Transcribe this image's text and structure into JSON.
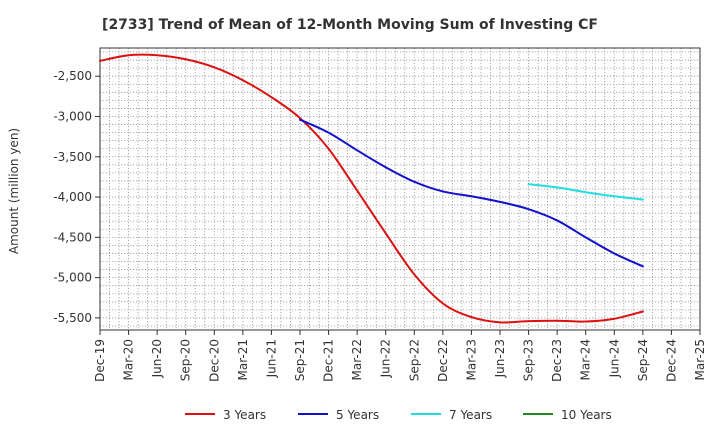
{
  "chart_data": {
    "type": "line",
    "title": "[2733]  Trend of Mean of 12-Month Moving Sum of Investing CF",
    "ylabel": "Amount (million yen)",
    "xlabel": "",
    "ylim": [
      -5650,
      -2150
    ],
    "yticks": [
      -2500,
      -3000,
      -3500,
      -4000,
      -4500,
      -5000,
      -5500
    ],
    "ytick_labels": [
      "-2,500",
      "-3,000",
      "-3,500",
      "-4,000",
      "-4,500",
      "-5,000",
      "-5,500"
    ],
    "categories": [
      "Dec-19",
      "Mar-20",
      "Jun-20",
      "Sep-20",
      "Dec-20",
      "Mar-21",
      "Jun-21",
      "Sep-21",
      "Dec-21",
      "Mar-22",
      "Jun-22",
      "Sep-22",
      "Dec-22",
      "Mar-23",
      "Jun-23",
      "Sep-23",
      "Dec-23",
      "Mar-24",
      "Jun-24",
      "Sep-24",
      "Dec-24",
      "Mar-25"
    ],
    "grid": true,
    "legend_position": "bottom",
    "series": [
      {
        "name": "3 Years",
        "color": "#dd1111",
        "values": [
          -2310,
          -2240,
          -2240,
          -2290,
          -2390,
          -2550,
          -2760,
          -3020,
          -3400,
          -3920,
          -4450,
          -4960,
          -5320,
          -5490,
          -5555,
          -5540,
          -5535,
          -5545,
          -5510,
          -5420,
          null,
          null
        ]
      },
      {
        "name": "5 Years",
        "color": "#1111cc",
        "values": [
          null,
          null,
          null,
          null,
          null,
          null,
          null,
          -3040,
          -3200,
          -3420,
          -3630,
          -3810,
          -3930,
          -3990,
          -4060,
          -4150,
          -4290,
          -4500,
          -4700,
          -4860,
          null,
          null
        ]
      },
      {
        "name": "7 Years",
        "color": "#22dddd",
        "values": [
          null,
          null,
          null,
          null,
          null,
          null,
          null,
          null,
          null,
          null,
          null,
          null,
          null,
          null,
          null,
          -3840,
          -3880,
          -3940,
          -3990,
          -4030,
          null,
          null
        ]
      },
      {
        "name": "10 Years",
        "color": "#228822",
        "values": [
          null,
          null,
          null,
          null,
          null,
          null,
          null,
          null,
          null,
          null,
          null,
          null,
          null,
          null,
          null,
          null,
          null,
          null,
          null,
          null,
          null,
          null
        ]
      }
    ]
  }
}
